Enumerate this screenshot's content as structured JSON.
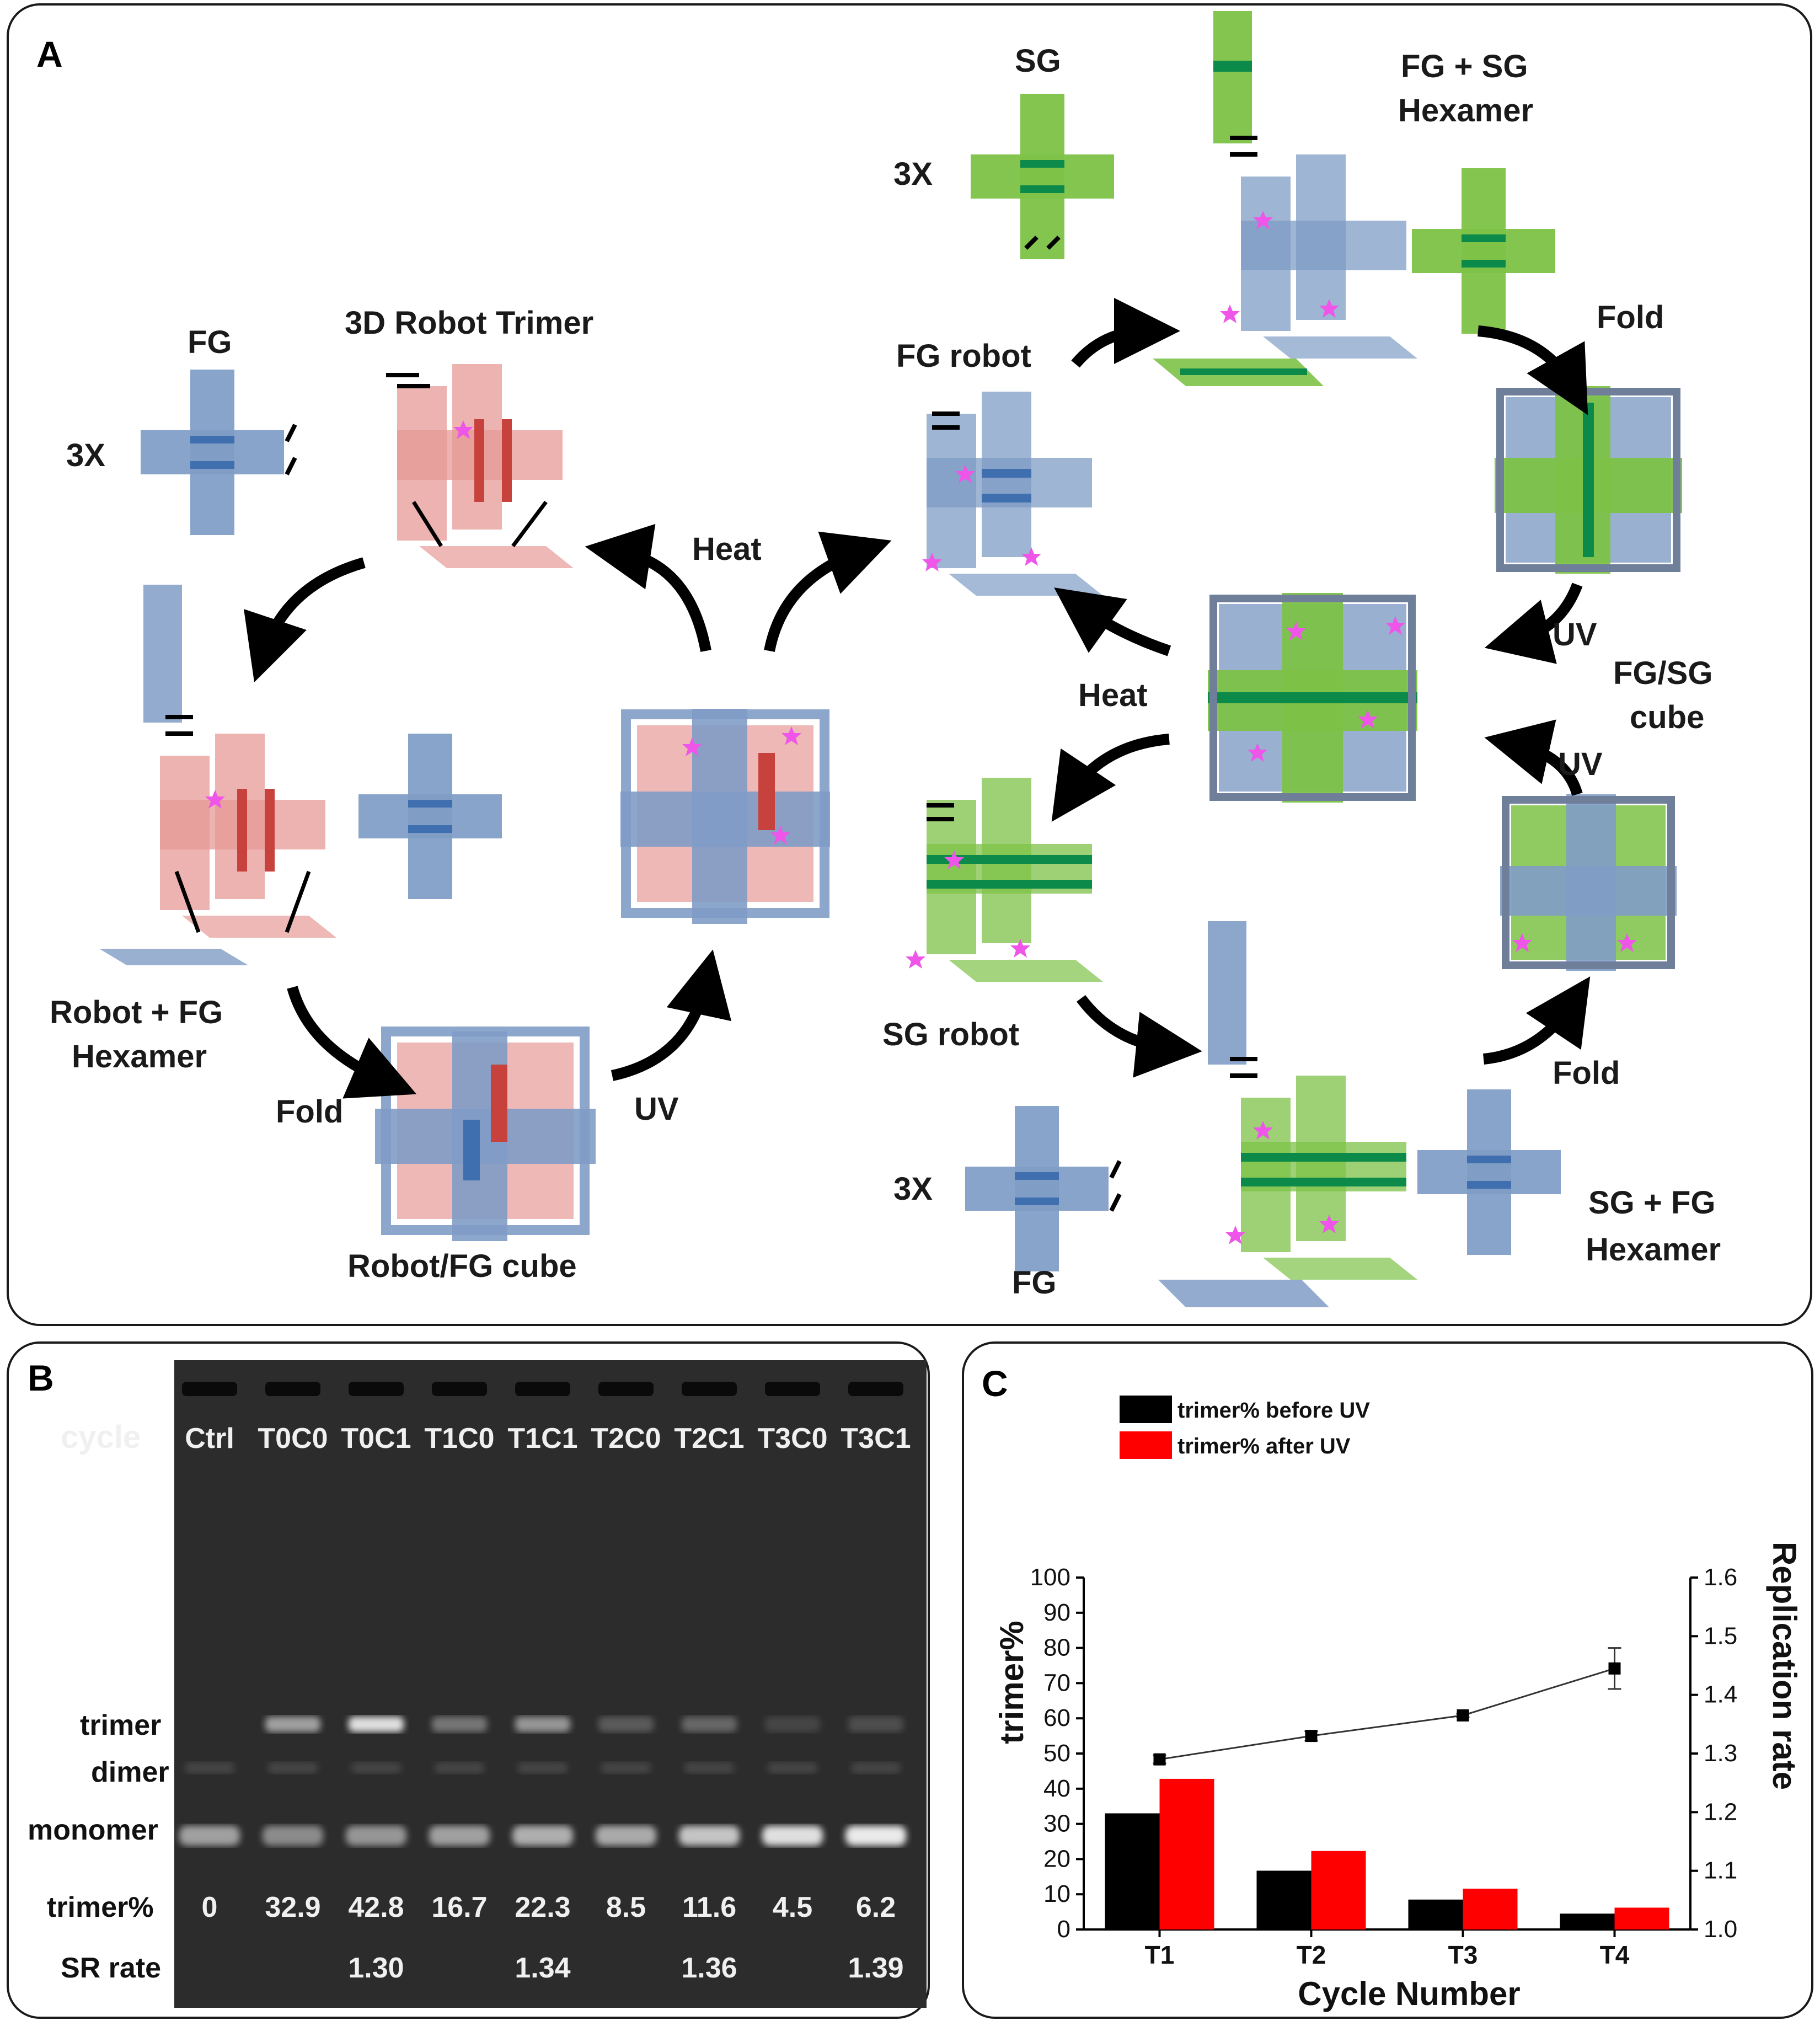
{
  "panelA": {
    "panel_label": "A",
    "labels": {
      "fg_left": "FG",
      "fg_left_count": "3X",
      "robot_trimer": "3D Robot Trimer",
      "robot_fg_hexamer": "Robot + FG\nHexamer",
      "fold_left": "Fold",
      "robot_fg_cube": "Robot/FG cube",
      "uv_left": "UV",
      "heat_left": "Heat",
      "sg_top": "SG",
      "sg_top_count": "3X",
      "fg_sg_hexamer": "FG + SG\nHexamer",
      "fg_robot": "FG robot",
      "fold_top_right": "Fold",
      "uv_right_top": "UV",
      "fg_sg_cube": "FG/SG\ncube",
      "heat_right": "Heat",
      "uv_right_bottom": "UV",
      "sg_robot": "SG robot",
      "fold_bottom_right": "Fold",
      "fg_bottom_count": "3X",
      "fg_bottom": "FG",
      "sg_fg_hexamer": "SG + FG\nHexamer"
    },
    "colors": {
      "fg_blue": "#7f9cc6",
      "fg_stripe": "#3f6fae",
      "robot_red": "#e59a96",
      "robot_stripe": "#c7423c",
      "sg_green": "#7dc247",
      "sg_stripe": "#0c8a4a",
      "star": "#ee55e8"
    }
  },
  "panelB": {
    "panel_label": "B",
    "cycle_label": "cycle",
    "lanes": [
      "Ctrl",
      "T0C0",
      "T0C1",
      "T1C0",
      "T1C1",
      "T2C0",
      "T2C1",
      "T3C0",
      "T3C1"
    ],
    "band_labels": [
      "trimer",
      "dimer",
      "monomer"
    ],
    "trimer_pct_label": "trimer%",
    "trimer_pct": [
      "0",
      "32.9",
      "42.8",
      "16.7",
      "22.3",
      "8.5",
      "11.6",
      "4.5",
      "6.2"
    ],
    "sr_rate_label": "SR rate",
    "sr_rate": [
      "",
      "",
      "1.30",
      "",
      "1.34",
      "",
      "1.36",
      "",
      "1.39"
    ],
    "trimer_intensity": [
      0.0,
      0.55,
      0.85,
      0.35,
      0.5,
      0.22,
      0.28,
      0.12,
      0.16
    ],
    "monomer_intensity": [
      0.55,
      0.45,
      0.5,
      0.55,
      0.62,
      0.6,
      0.72,
      0.85,
      0.9
    ]
  },
  "panelC": {
    "panel_label": "C",
    "chart_data": {
      "type": "bar",
      "categories": [
        "T1",
        "T2",
        "T3",
        "T4"
      ],
      "series": [
        {
          "name": "trimer% before UV",
          "color": "#000000",
          "values": [
            33.0,
            16.7,
            8.5,
            4.5
          ]
        },
        {
          "name": "trimer% after UV",
          "color": "#ff0000",
          "values": [
            42.8,
            22.3,
            11.6,
            6.2
          ]
        }
      ],
      "line_series": {
        "axis": "right",
        "values": [
          1.29,
          1.33,
          1.365,
          1.445
        ],
        "error": [
          0.007,
          0.008,
          0.003,
          0.035
        ]
      },
      "xlabel": "Cycle Number",
      "ylabel": "trimer%",
      "y2label": "Replication rate",
      "ylim": [
        0,
        100
      ],
      "y2lim": [
        1.0,
        1.6
      ],
      "yticks": [
        "0",
        "10",
        "20",
        "30",
        "40",
        "50",
        "60",
        "70",
        "80",
        "90",
        "100"
      ],
      "y2ticks": [
        "1.0",
        "1.1",
        "1.2",
        "1.3",
        "1.4",
        "1.5",
        "1.6"
      ],
      "legend_position": "top-left"
    }
  }
}
